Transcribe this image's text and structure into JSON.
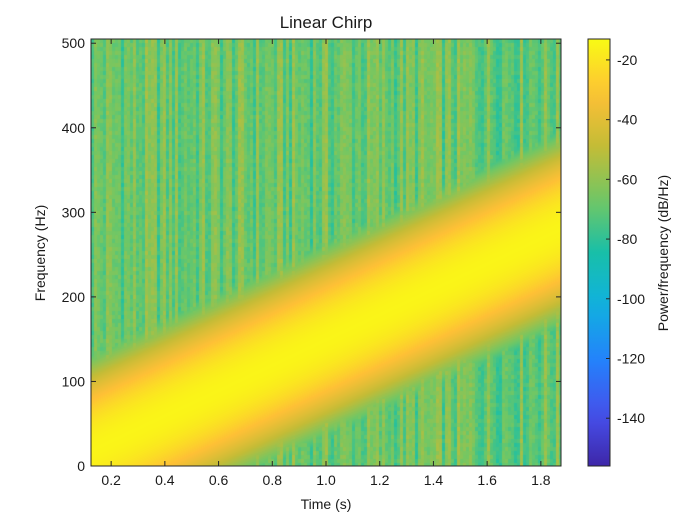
{
  "chart_data": {
    "type": "heatmap",
    "title": "Linear Chirp",
    "xlabel": "Time (s)",
    "ylabel": "Frequency (Hz)",
    "colorbar_label": "Power/frequency (dB/Hz)",
    "xlim": [
      0.125,
      1.875
    ],
    "ylim": [
      0,
      505
    ],
    "xticks": [
      0.2,
      0.4,
      0.6,
      0.8,
      1.0,
      1.2,
      1.4,
      1.6,
      1.8
    ],
    "xtick_labels": [
      "0.2",
      "0.4",
      "0.6",
      "0.8",
      "1.0",
      "1.2",
      "1.4",
      "1.6",
      "1.8"
    ],
    "yticks": [
      0,
      100,
      200,
      300,
      400,
      500
    ],
    "ytick_labels": [
      "0",
      "100",
      "200",
      "300",
      "400",
      "500"
    ],
    "colorbar_range": [
      -156,
      -13
    ],
    "colorbar_ticks": [
      -20,
      -40,
      -60,
      -80,
      -100,
      -120,
      -140
    ],
    "colorbar_tick_labels": [
      "-20",
      "-40",
      "-60",
      "-80",
      "-100",
      "-120",
      "-140"
    ],
    "colormap": "parula",
    "chirp": {
      "t_start": 0.125,
      "f_start": 18,
      "t_end": 1.875,
      "f_end": 280,
      "peak_power": -15
    },
    "background_power": -68,
    "grid": false
  }
}
